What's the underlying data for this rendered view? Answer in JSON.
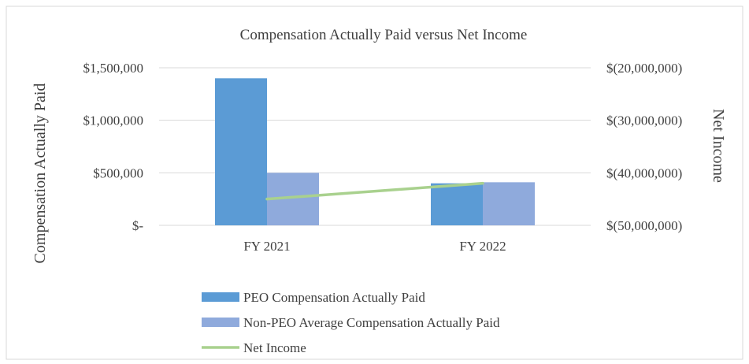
{
  "chart_data": {
    "type": "bar",
    "title": "Compensation Actually Paid versus Net Income",
    "categories": [
      "FY 2021",
      "FY 2022"
    ],
    "ylabel": "Compensation Actually Paid",
    "y2label": "Net Income",
    "ylim": [
      0,
      1500000
    ],
    "y2lim": [
      -50000000,
      -20000000
    ],
    "yticks": [
      {
        "value": 0,
        "label": "$-"
      },
      {
        "value": 500000,
        "label": "$500,000"
      },
      {
        "value": 1000000,
        "label": "$1,000,000"
      },
      {
        "value": 1500000,
        "label": "$1,500,000"
      }
    ],
    "y2ticks": [
      {
        "value": -50000000,
        "label": "$(50,000,000)"
      },
      {
        "value": -40000000,
        "label": "$(40,000,000)"
      },
      {
        "value": -30000000,
        "label": "$(30,000,000)"
      },
      {
        "value": -20000000,
        "label": "$(20,000,000)"
      }
    ],
    "series": [
      {
        "name": "PEO Compensation Actually Paid",
        "type": "bar",
        "axis": "left",
        "color": "#5B9BD5",
        "values": [
          1400000,
          400000
        ]
      },
      {
        "name": "Non-PEO Average Compensation Actually Paid",
        "type": "bar",
        "axis": "left",
        "color": "#8FAADC",
        "values": [
          500000,
          410000
        ]
      },
      {
        "name": "Net Income",
        "type": "line",
        "axis": "right",
        "color": "#A9D18E",
        "values": [
          -45000000,
          -42000000
        ]
      }
    ],
    "grid": true,
    "legend_position": "bottom"
  }
}
